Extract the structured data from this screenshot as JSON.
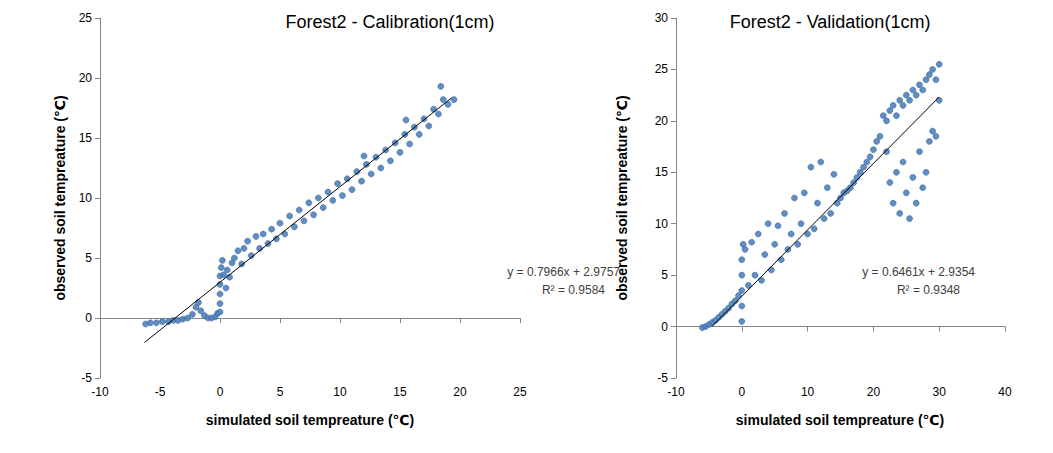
{
  "chart_data": [
    {
      "type": "scatter",
      "title": "Forest2 - Calibration(1cm)",
      "xlabel": "simulated soil tempreature (℃)",
      "ylabel": "observed soil tempreature (℃)",
      "xlim": [
        -10,
        25
      ],
      "ylim": [
        -5,
        25
      ],
      "xticks": [
        -10,
        -5,
        0,
        5,
        10,
        15,
        20,
        25
      ],
      "yticks": [
        -5,
        0,
        5,
        10,
        15,
        20,
        25
      ],
      "grid": false,
      "color": "#4f81bd",
      "marker": "circle",
      "x": [
        -6.2,
        -5.8,
        -5.3,
        -4.8,
        -4.3,
        -3.9,
        -3.5,
        -3.1,
        -2.7,
        -2.3,
        -2.0,
        -1.8,
        -1.6,
        -1.3,
        -1.0,
        -0.7,
        -0.4,
        -0.2,
        0,
        0,
        0,
        0,
        0,
        0.1,
        0.2,
        0.3,
        0.5,
        0.6,
        0.8,
        1,
        1.2,
        1.5,
        1.8,
        2,
        2.3,
        2.6,
        3,
        3.3,
        3.6,
        4,
        4.3,
        4.7,
        5,
        5.4,
        5.8,
        6.2,
        6.6,
        7,
        7.4,
        7.8,
        8.2,
        8.6,
        9,
        9.4,
        9.8,
        10.2,
        10.6,
        11,
        11.4,
        11.8,
        12.2,
        12.6,
        13,
        13.4,
        13.8,
        14.2,
        14.6,
        15,
        15.4,
        15.8,
        16.2,
        16.6,
        17,
        17.4,
        17.8,
        18.2,
        18.6,
        19,
        19.5,
        18.4,
        15.5,
        12
      ],
      "values": [
        -0.5,
        -0.4,
        -0.4,
        -0.3,
        -0.3,
        -0.2,
        -0.2,
        -0.1,
        0,
        0.3,
        0.9,
        1.3,
        0.6,
        0.2,
        0,
        0,
        0.1,
        0.4,
        0.5,
        1.2,
        2,
        2.8,
        3.5,
        4.2,
        4.8,
        3.6,
        2.5,
        4.0,
        3.4,
        4.6,
        5.0,
        5.6,
        4.5,
        5.8,
        6.4,
        5.2,
        6.8,
        5.8,
        7.0,
        6.2,
        7.4,
        6.6,
        7.9,
        7.0,
        8.5,
        7.6,
        9.0,
        8.1,
        9.6,
        8.6,
        10.0,
        9.2,
        10.5,
        9.8,
        11.2,
        10.2,
        11.6,
        10.7,
        12.2,
        11.4,
        12.8,
        12.0,
        13.4,
        12.5,
        14.0,
        13.1,
        14.6,
        13.8,
        15.3,
        14.5,
        15.9,
        15.3,
        16.6,
        16.0,
        17.4,
        17.0,
        18.2,
        17.8,
        18.2,
        19.3,
        16.5,
        13.5
      ],
      "trendline": {
        "slope": 0.7966,
        "intercept": 2.9757,
        "x_range": [
          -6.3,
          19.3
        ],
        "equation": "y = 0.7966x + 2.9757",
        "r2": 0.9584,
        "r2_label": "R² = 0.9584",
        "color": "#000000"
      }
    },
    {
      "type": "scatter",
      "title": "Forest2 - Validation(1cm)",
      "xlabel": "simulated soil tempreature (℃)",
      "ylabel": "observed soil tempreature (℃)",
      "xlim": [
        -10,
        40
      ],
      "ylim": [
        -5,
        30
      ],
      "xticks": [
        -10,
        0,
        10,
        20,
        30,
        40
      ],
      "yticks": [
        -5,
        0,
        5,
        10,
        15,
        20,
        25,
        30
      ],
      "grid": false,
      "color": "#4f81bd",
      "marker": "circle",
      "x": [
        -6,
        -5.5,
        -5,
        -4.5,
        -4,
        -3.5,
        -3,
        -2.5,
        -2,
        -1.5,
        -1,
        -0.5,
        0,
        0,
        0,
        0,
        0,
        0.2,
        0.5,
        1,
        1.5,
        2,
        2.5,
        3,
        3.5,
        4,
        4.5,
        5,
        5.5,
        6,
        6.5,
        7,
        7.5,
        8,
        8.5,
        9,
        9.5,
        10,
        10.5,
        11,
        11.5,
        12,
        12.5,
        13,
        13.5,
        14,
        14.5,
        15,
        15.5,
        16,
        16.5,
        17,
        17.5,
        18,
        18.5,
        19,
        19.5,
        20,
        20.5,
        21,
        21.5,
        22,
        22.5,
        23,
        23.5,
        24,
        24.5,
        25,
        25.5,
        26,
        26.5,
        27,
        27.5,
        28,
        28.5,
        29,
        29.5,
        30,
        22,
        22.5,
        23,
        23.5,
        24,
        24.5,
        25,
        25.5,
        26,
        26.5,
        27,
        27.5,
        28,
        28.5,
        29,
        29.5,
        30
      ],
      "values": [
        -0.1,
        0,
        0.2,
        0.4,
        0.6,
        0.9,
        1.2,
        1.5,
        1.8,
        2.2,
        2.5,
        3,
        0.5,
        2,
        3.5,
        5,
        6.5,
        8,
        7.5,
        4,
        8.2,
        5,
        9,
        4.5,
        7,
        10,
        5.5,
        8,
        9.8,
        6.5,
        11,
        7.5,
        9,
        12.5,
        8,
        10,
        13,
        9,
        15.5,
        9.5,
        12,
        16,
        10.5,
        13.5,
        11,
        14.8,
        12,
        12.5,
        13,
        13.2,
        13.5,
        14,
        14.5,
        15,
        15.5,
        16,
        16.5,
        17.2,
        18,
        18.5,
        20.5,
        20,
        21,
        21.5,
        20.5,
        22,
        21.5,
        22.5,
        22,
        23,
        22.5,
        23.5,
        23,
        24,
        24.5,
        25,
        24,
        25.5,
        17,
        14,
        12,
        15,
        11,
        16,
        13,
        10.5,
        14.5,
        12,
        17,
        13.5,
        15,
        18,
        19,
        18.5,
        22
      ],
      "trendline": {
        "slope": 0.6461,
        "intercept": 2.9354,
        "x_range": [
          -4.5,
          30
        ],
        "equation": "y = 0.6461x + 2.9354",
        "r2": 0.9348,
        "r2_label": "R² = 0.9348",
        "color": "#000000"
      }
    }
  ]
}
